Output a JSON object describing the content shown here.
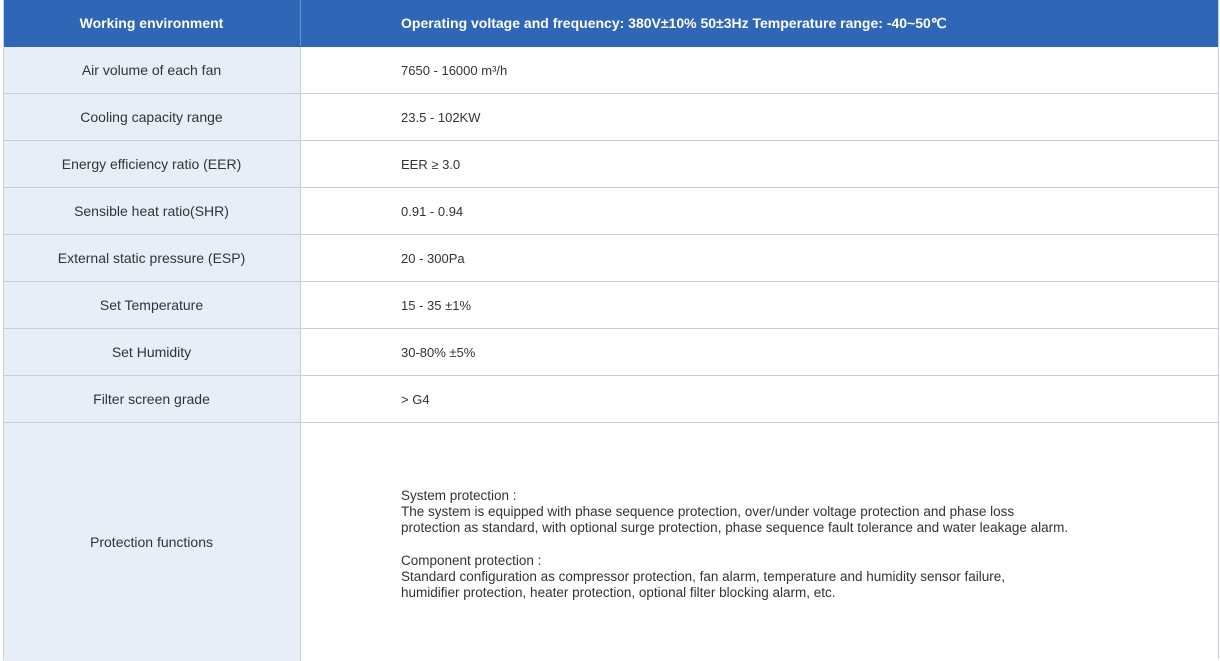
{
  "header": {
    "left": "Working environment",
    "right": "Operating voltage and frequency: 380V±10% 50±3Hz Temperature range: -40~50℃"
  },
  "rows": [
    {
      "label": "Air volume of each fan",
      "value": "7650 - 16000 m³/h"
    },
    {
      "label": "Cooling capacity range",
      "value": "23.5 - 102KW"
    },
    {
      "label": "Energy efficiency ratio (EER)",
      "value": "EER ≥ 3.0"
    },
    {
      "label": "Sensible heat ratio(SHR)",
      "value": "0.91 - 0.94"
    },
    {
      "label": "External static pressure (ESP)",
      "value": "20 - 300Pa"
    },
    {
      "label": "Set Temperature",
      "value": "15 - 35 ±1%"
    },
    {
      "label": "Set Humidity",
      "value": "30-80% ±5%"
    },
    {
      "label": "Filter screen grade",
      "value": "> G4"
    }
  ],
  "protection": {
    "label": "Protection functions",
    "system_title": "System protection :",
    "system_line1": "The system is equipped with phase sequence protection, over/under voltage protection and phase loss",
    "system_line2": "protection as standard, with optional surge protection, phase sequence fault tolerance and water leakage alarm.",
    "component_title": "Component protection :",
    "component_line1": "Standard configuration as compressor protection, fan alarm, temperature and humidity sensor failure,",
    "component_line2": "humidifier protection, heater protection, optional filter blocking alarm, etc."
  }
}
